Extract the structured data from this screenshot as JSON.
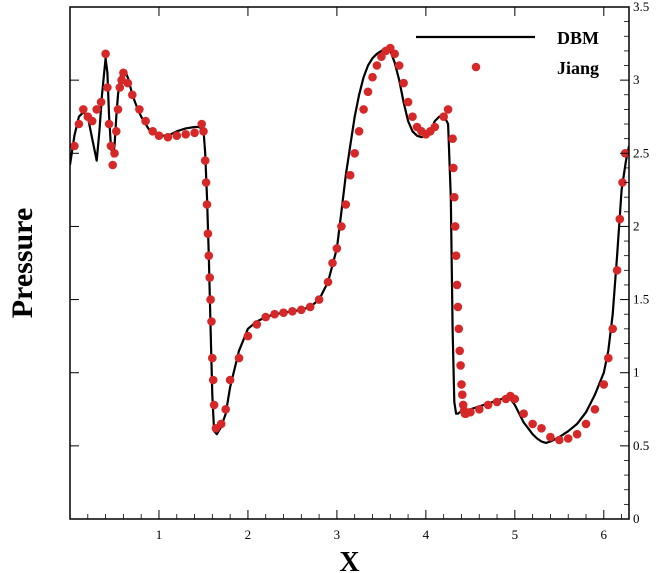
{
  "chart_data": {
    "type": "line",
    "xlabel": "X",
    "ylabel": "Pressure",
    "xlim": [
      0,
      6.2832
    ],
    "ylim": [
      0,
      3.5
    ],
    "xticks": [
      "1",
      "2",
      "3",
      "4",
      "5",
      "6"
    ],
    "yticks": [
      "0",
      "0.5",
      "1",
      "1.5",
      "2",
      "2.5",
      "3",
      "3.5"
    ],
    "yaxis_side": "right",
    "grid": false,
    "legend_position": "top-right",
    "series": [
      {
        "name": "DBM",
        "style": "line",
        "color": "#000000",
        "x": [
          0.0,
          0.05,
          0.1,
          0.15,
          0.2,
          0.25,
          0.3,
          0.33,
          0.36,
          0.4,
          0.42,
          0.44,
          0.46,
          0.48,
          0.5,
          0.52,
          0.54,
          0.56,
          0.58,
          0.6,
          0.63,
          0.66,
          0.7,
          0.75,
          0.8,
          0.9,
          1.0,
          1.1,
          1.2,
          1.3,
          1.4,
          1.45,
          1.5,
          1.52,
          1.54,
          1.56,
          1.58,
          1.6,
          1.62,
          1.65,
          1.7,
          1.75,
          1.8,
          1.9,
          2.0,
          2.1,
          2.2,
          2.3,
          2.4,
          2.5,
          2.6,
          2.7,
          2.8,
          2.9,
          3.0,
          3.05,
          3.1,
          3.15,
          3.2,
          3.25,
          3.3,
          3.35,
          3.4,
          3.45,
          3.5,
          3.55,
          3.6,
          3.65,
          3.7,
          3.75,
          3.8,
          3.85,
          3.9,
          3.95,
          4.0,
          4.05,
          4.1,
          4.15,
          4.2,
          4.25,
          4.28,
          4.3,
          4.32,
          4.34,
          4.36,
          4.38,
          4.4,
          4.45,
          4.5,
          4.6,
          4.7,
          4.8,
          4.9,
          4.95,
          5.0,
          5.05,
          5.1,
          5.15,
          5.2,
          5.25,
          5.3,
          5.35,
          5.4,
          5.5,
          5.6,
          5.7,
          5.8,
          5.9,
          6.0,
          6.05,
          6.1,
          6.15,
          6.2,
          6.25,
          6.2832
        ],
        "y": [
          2.42,
          2.62,
          2.75,
          2.78,
          2.75,
          2.6,
          2.45,
          2.65,
          2.9,
          3.15,
          3.05,
          2.75,
          2.55,
          2.48,
          2.55,
          2.75,
          2.9,
          3.0,
          3.05,
          3.06,
          3.05,
          3.0,
          2.9,
          2.82,
          2.75,
          2.65,
          2.62,
          2.62,
          2.65,
          2.67,
          2.68,
          2.68,
          2.66,
          2.5,
          2.2,
          1.8,
          1.3,
          0.85,
          0.6,
          0.58,
          0.63,
          0.72,
          0.9,
          1.15,
          1.3,
          1.35,
          1.38,
          1.4,
          1.41,
          1.42,
          1.43,
          1.45,
          1.5,
          1.62,
          1.85,
          2.1,
          2.35,
          2.55,
          2.75,
          2.9,
          3.02,
          3.1,
          3.15,
          3.18,
          3.2,
          3.22,
          3.2,
          3.12,
          3.0,
          2.85,
          2.72,
          2.65,
          2.62,
          2.61,
          2.62,
          2.65,
          2.72,
          2.75,
          2.76,
          2.7,
          2.2,
          1.3,
          0.8,
          0.72,
          0.72,
          0.73,
          0.73,
          0.74,
          0.75,
          0.77,
          0.79,
          0.81,
          0.83,
          0.82,
          0.78,
          0.72,
          0.66,
          0.62,
          0.58,
          0.55,
          0.53,
          0.52,
          0.53,
          0.56,
          0.6,
          0.65,
          0.73,
          0.85,
          1.0,
          1.15,
          1.4,
          1.8,
          2.25,
          2.45,
          2.55
        ]
      },
      {
        "name": "Jiang",
        "style": "markers",
        "color": "#d62828",
        "x": [
          0.05,
          0.1,
          0.15,
          0.2,
          0.25,
          0.3,
          0.35,
          0.4,
          0.42,
          0.44,
          0.46,
          0.48,
          0.5,
          0.52,
          0.54,
          0.56,
          0.58,
          0.6,
          0.65,
          0.7,
          0.78,
          0.85,
          0.93,
          1.0,
          1.1,
          1.2,
          1.3,
          1.4,
          1.48,
          1.5,
          1.52,
          1.53,
          1.54,
          1.55,
          1.56,
          1.57,
          1.58,
          1.59,
          1.6,
          1.61,
          1.62,
          1.64,
          1.7,
          1.75,
          1.8,
          1.9,
          2.0,
          2.1,
          2.2,
          2.3,
          2.4,
          2.5,
          2.6,
          2.7,
          2.8,
          2.9,
          2.95,
          3.0,
          3.05,
          3.1,
          3.15,
          3.2,
          3.25,
          3.3,
          3.35,
          3.4,
          3.45,
          3.5,
          3.55,
          3.6,
          3.65,
          3.7,
          3.75,
          3.8,
          3.85,
          3.9,
          3.95,
          4.0,
          4.05,
          4.1,
          4.2,
          4.25,
          4.3,
          4.31,
          4.32,
          4.33,
          4.34,
          4.35,
          4.36,
          4.37,
          4.38,
          4.39,
          4.4,
          4.41,
          4.42,
          4.43,
          4.44,
          4.45,
          4.5,
          4.6,
          4.7,
          4.8,
          4.9,
          4.95,
          5.0,
          5.1,
          5.2,
          5.3,
          5.4,
          5.5,
          5.6,
          5.7,
          5.8,
          5.9,
          6.0,
          6.05,
          6.1,
          6.15,
          6.18,
          6.21,
          6.24
        ],
        "y": [
          2.55,
          2.7,
          2.8,
          2.75,
          2.72,
          2.8,
          2.85,
          3.18,
          2.95,
          2.7,
          2.55,
          2.42,
          2.5,
          2.65,
          2.8,
          2.95,
          3.0,
          3.05,
          2.98,
          2.9,
          2.8,
          2.72,
          2.65,
          2.62,
          2.61,
          2.62,
          2.63,
          2.64,
          2.7,
          2.65,
          2.45,
          2.3,
          2.15,
          1.95,
          1.8,
          1.65,
          1.5,
          1.35,
          1.1,
          0.95,
          0.78,
          0.62,
          0.65,
          0.75,
          0.95,
          1.1,
          1.25,
          1.33,
          1.38,
          1.4,
          1.41,
          1.42,
          1.43,
          1.45,
          1.5,
          1.62,
          1.75,
          1.85,
          2.0,
          2.15,
          2.35,
          2.5,
          2.65,
          2.8,
          2.92,
          3.02,
          3.1,
          3.16,
          3.2,
          3.22,
          3.18,
          3.1,
          2.98,
          2.85,
          2.75,
          2.68,
          2.65,
          2.63,
          2.65,
          2.68,
          2.75,
          2.8,
          2.6,
          2.4,
          2.2,
          2.0,
          1.8,
          1.6,
          1.45,
          1.3,
          1.15,
          1.05,
          0.92,
          0.85,
          0.78,
          0.74,
          0.72,
          0.72,
          0.73,
          0.75,
          0.78,
          0.8,
          0.82,
          0.84,
          0.82,
          0.72,
          0.65,
          0.62,
          0.56,
          0.54,
          0.55,
          0.58,
          0.65,
          0.75,
          0.92,
          1.1,
          1.3,
          1.7,
          2.05,
          2.3,
          2.5
        ]
      }
    ]
  }
}
